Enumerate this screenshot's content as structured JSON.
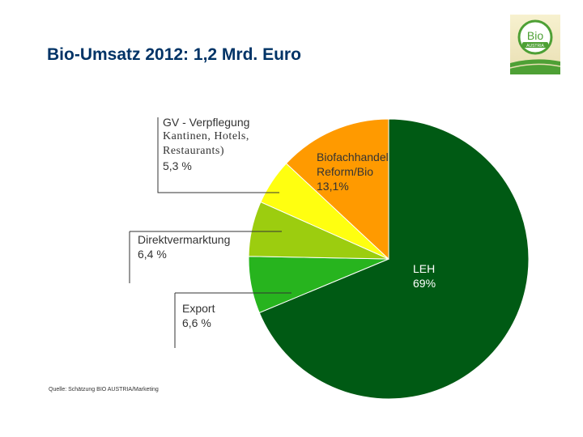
{
  "title": "Bio-Umsatz 2012: 1,2 Mrd. Euro",
  "logo": {
    "text_top": "Bio",
    "text_bottom": "AUSTRIA"
  },
  "source": "Quelle: Schätzung BIO AUSTRIA/Marketing",
  "colors": {
    "leh": "#005a14",
    "export": "#27b41e",
    "direkt": "#9ccd0f",
    "gv": "#ffff10",
    "biofach": "#ff9a00",
    "title": "#003366",
    "logo_ring": "#4ea035"
  },
  "chart_data": {
    "type": "pie",
    "title": "Bio-Umsatz 2012: 1,2 Mrd. Euro",
    "start": "12 o'clock, clockwise",
    "slices": [
      {
        "key": "leh",
        "label": "LEH",
        "value": 69,
        "value_label": "69%"
      },
      {
        "key": "export",
        "label": "Export",
        "value": 6.6,
        "value_label": "6,6 %"
      },
      {
        "key": "direkt",
        "label": "Direktvermarktung",
        "value": 6.4,
        "value_label": "6,4 %"
      },
      {
        "key": "gv",
        "label": "GV - Verpflegung",
        "label_detail": [
          "Kantinen, Hotels,",
          "Restaurants)"
        ],
        "value": 5.3,
        "value_label": "5,3 %"
      },
      {
        "key": "biofach",
        "label": "Biofachhandel",
        "label_line2": "Reform/Bio",
        "value": 13.1,
        "value_label": "13,1%"
      }
    ]
  }
}
